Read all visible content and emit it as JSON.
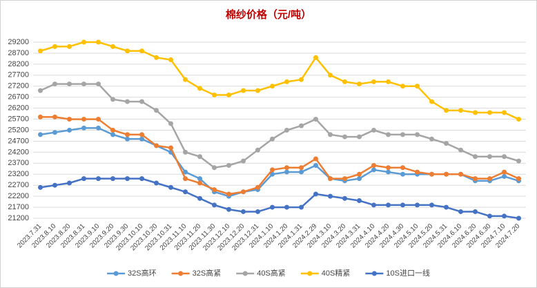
{
  "chart_data": {
    "type": "line",
    "title": "棉纱价格（元/吨）",
    "categories": [
      "2023.7.31",
      "2023.8.10",
      "2023.8.20",
      "2023.8.31",
      "2023.9.10",
      "2023.9.20",
      "2023.9.30",
      "2023.10.10",
      "2023.10.20",
      "2023.10.31",
      "2023.11.10",
      "2023.11.20",
      "2023.11.30",
      "2023.12.10",
      "2023.12.20",
      "2023.12.31",
      "2024.1.10",
      "2024.1.20",
      "2024.1.31",
      "2024.2.29",
      "2024.3.10",
      "2024.3.20",
      "2024.3.31",
      "2024.4.10",
      "2024.4.20",
      "2024.4.30",
      "2024.5.10",
      "2024.5.20",
      "2024.5.31",
      "2024.6.10",
      "2024.6.20",
      "2024.6.30",
      "2024.7.10",
      "2024.7.20"
    ],
    "series": [
      {
        "name": "32S高环",
        "color": "#5b9bd5",
        "values": [
          25000,
          25100,
          25200,
          25300,
          25300,
          25000,
          24800,
          24800,
          24500,
          24200,
          23300,
          23000,
          22400,
          22200,
          22400,
          22500,
          23200,
          23300,
          23300,
          23600,
          23000,
          22900,
          23000,
          23400,
          23300,
          23200,
          23200,
          23200,
          23200,
          23200,
          22900,
          22900,
          23100,
          22900
        ]
      },
      {
        "name": "32S高紧",
        "color": "#ed7d31",
        "values": [
          25800,
          25800,
          25700,
          25700,
          25700,
          25200,
          25000,
          25000,
          24500,
          24400,
          23000,
          22800,
          22500,
          22300,
          22400,
          22600,
          23400,
          23500,
          23500,
          23900,
          23000,
          23000,
          23200,
          23600,
          23500,
          23500,
          23300,
          23200,
          23200,
          23200,
          23000,
          23000,
          23300,
          23000
        ]
      },
      {
        "name": "40S高紧",
        "color": "#a5a5a5",
        "values": [
          27000,
          27300,
          27300,
          27300,
          27300,
          26600,
          26500,
          26500,
          26100,
          25500,
          24200,
          24000,
          23500,
          23600,
          23800,
          24300,
          24800,
          25200,
          25400,
          25700,
          25000,
          24900,
          24900,
          25200,
          25000,
          25000,
          25000,
          24800,
          24600,
          24300,
          24000,
          24000,
          24000,
          23800
        ]
      },
      {
        "name": "40S精紧",
        "color": "#ffc000",
        "values": [
          28800,
          29000,
          29000,
          29200,
          29200,
          29000,
          28800,
          28800,
          28500,
          28400,
          27500,
          27100,
          26800,
          26800,
          27000,
          27000,
          27200,
          27400,
          27500,
          28500,
          27700,
          27400,
          27300,
          27400,
          27400,
          27200,
          27200,
          26500,
          26100,
          26100,
          26000,
          26000,
          26000,
          25700
        ]
      },
      {
        "name": "10S进口一线",
        "color": "#4472c4",
        "values": [
          22600,
          22700,
          22800,
          23000,
          23000,
          23000,
          23000,
          23000,
          22800,
          22600,
          22400,
          22100,
          21800,
          21600,
          21500,
          21500,
          21700,
          21700,
          21700,
          22300,
          22200,
          22100,
          22000,
          21800,
          21800,
          21800,
          21800,
          21800,
          21700,
          21500,
          21500,
          21300,
          21300,
          21200
        ]
      }
    ],
    "ylim": [
      21200,
      29200
    ],
    "yticks": [
      21200,
      21700,
      22200,
      22700,
      23200,
      23700,
      24200,
      24700,
      25200,
      25700,
      26200,
      26700,
      27200,
      27700,
      28200,
      28700,
      29200
    ],
    "grid": true,
    "legend": "bottom"
  }
}
